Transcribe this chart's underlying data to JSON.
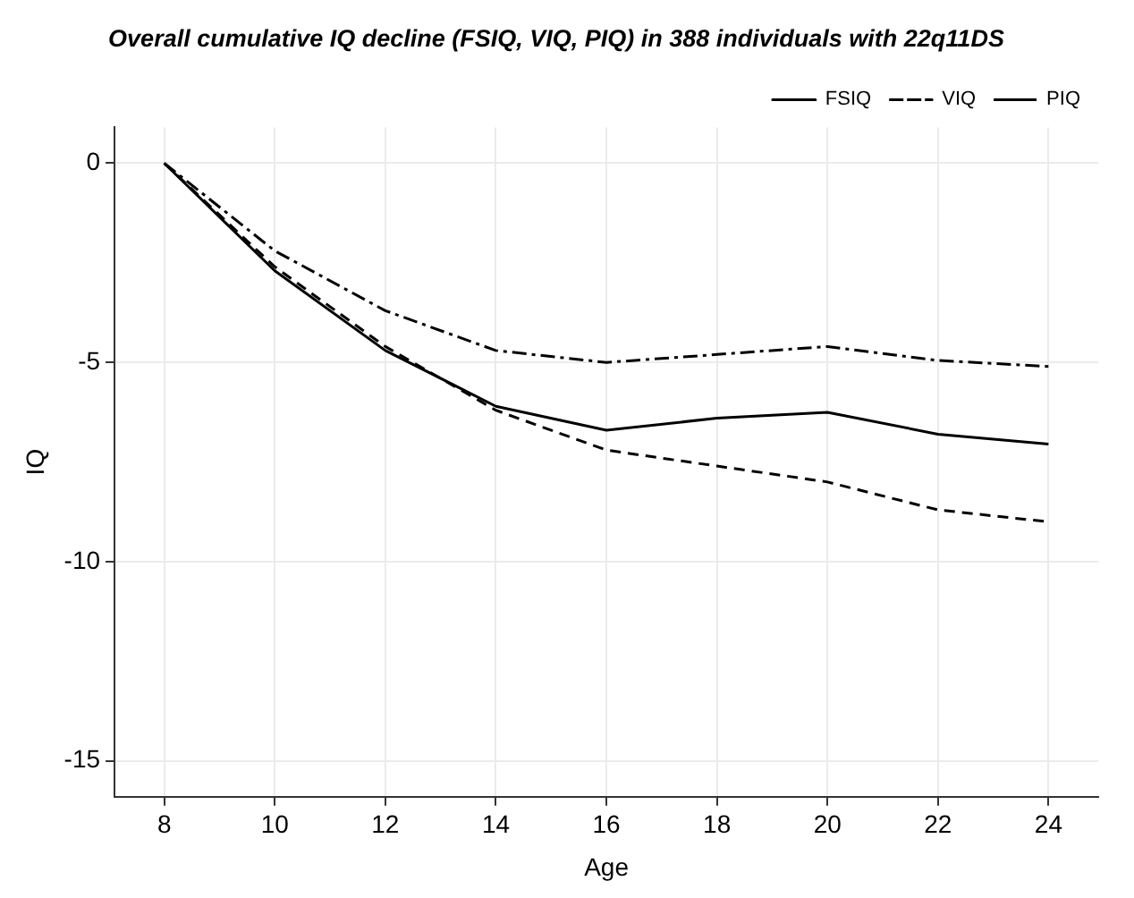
{
  "chart_data": {
    "type": "line",
    "title": "Overall cumulative IQ decline (FSIQ, VIQ, PIQ) in 388 individuals with 22q11DS",
    "xlabel": "Age",
    "ylabel": "IQ",
    "x": [
      8,
      10,
      12,
      14,
      16,
      18,
      20,
      22,
      24
    ],
    "series": [
      {
        "name": "FSIQ",
        "color": "#000000",
        "line_style": "solid",
        "values": [
          0,
          -2.7,
          -4.7,
          -6.1,
          -6.7,
          -6.4,
          -6.25,
          -6.8,
          -7.05
        ]
      },
      {
        "name": "VIQ",
        "color": "#000000",
        "line_style": "dashed",
        "values": [
          0,
          -2.6,
          -4.6,
          -6.2,
          -7.2,
          -7.6,
          -8.0,
          -8.7,
          -9.0
        ]
      },
      {
        "name": "PIQ",
        "color": "#000000",
        "line_style": "dashdot",
        "values": [
          0,
          -2.2,
          -3.7,
          -4.7,
          -5.0,
          -4.8,
          -4.6,
          -4.95,
          -5.1
        ]
      }
    ],
    "xlim": [
      7.1,
      24.9
    ],
    "xticks": [
      8,
      10,
      12,
      14,
      16,
      18,
      20,
      22,
      24
    ],
    "ylim": [
      -15.9,
      0.9
    ],
    "yticks": [
      -15,
      -10,
      -5,
      0
    ],
    "grid": true,
    "legend": "top right",
    "marker": "none"
  }
}
